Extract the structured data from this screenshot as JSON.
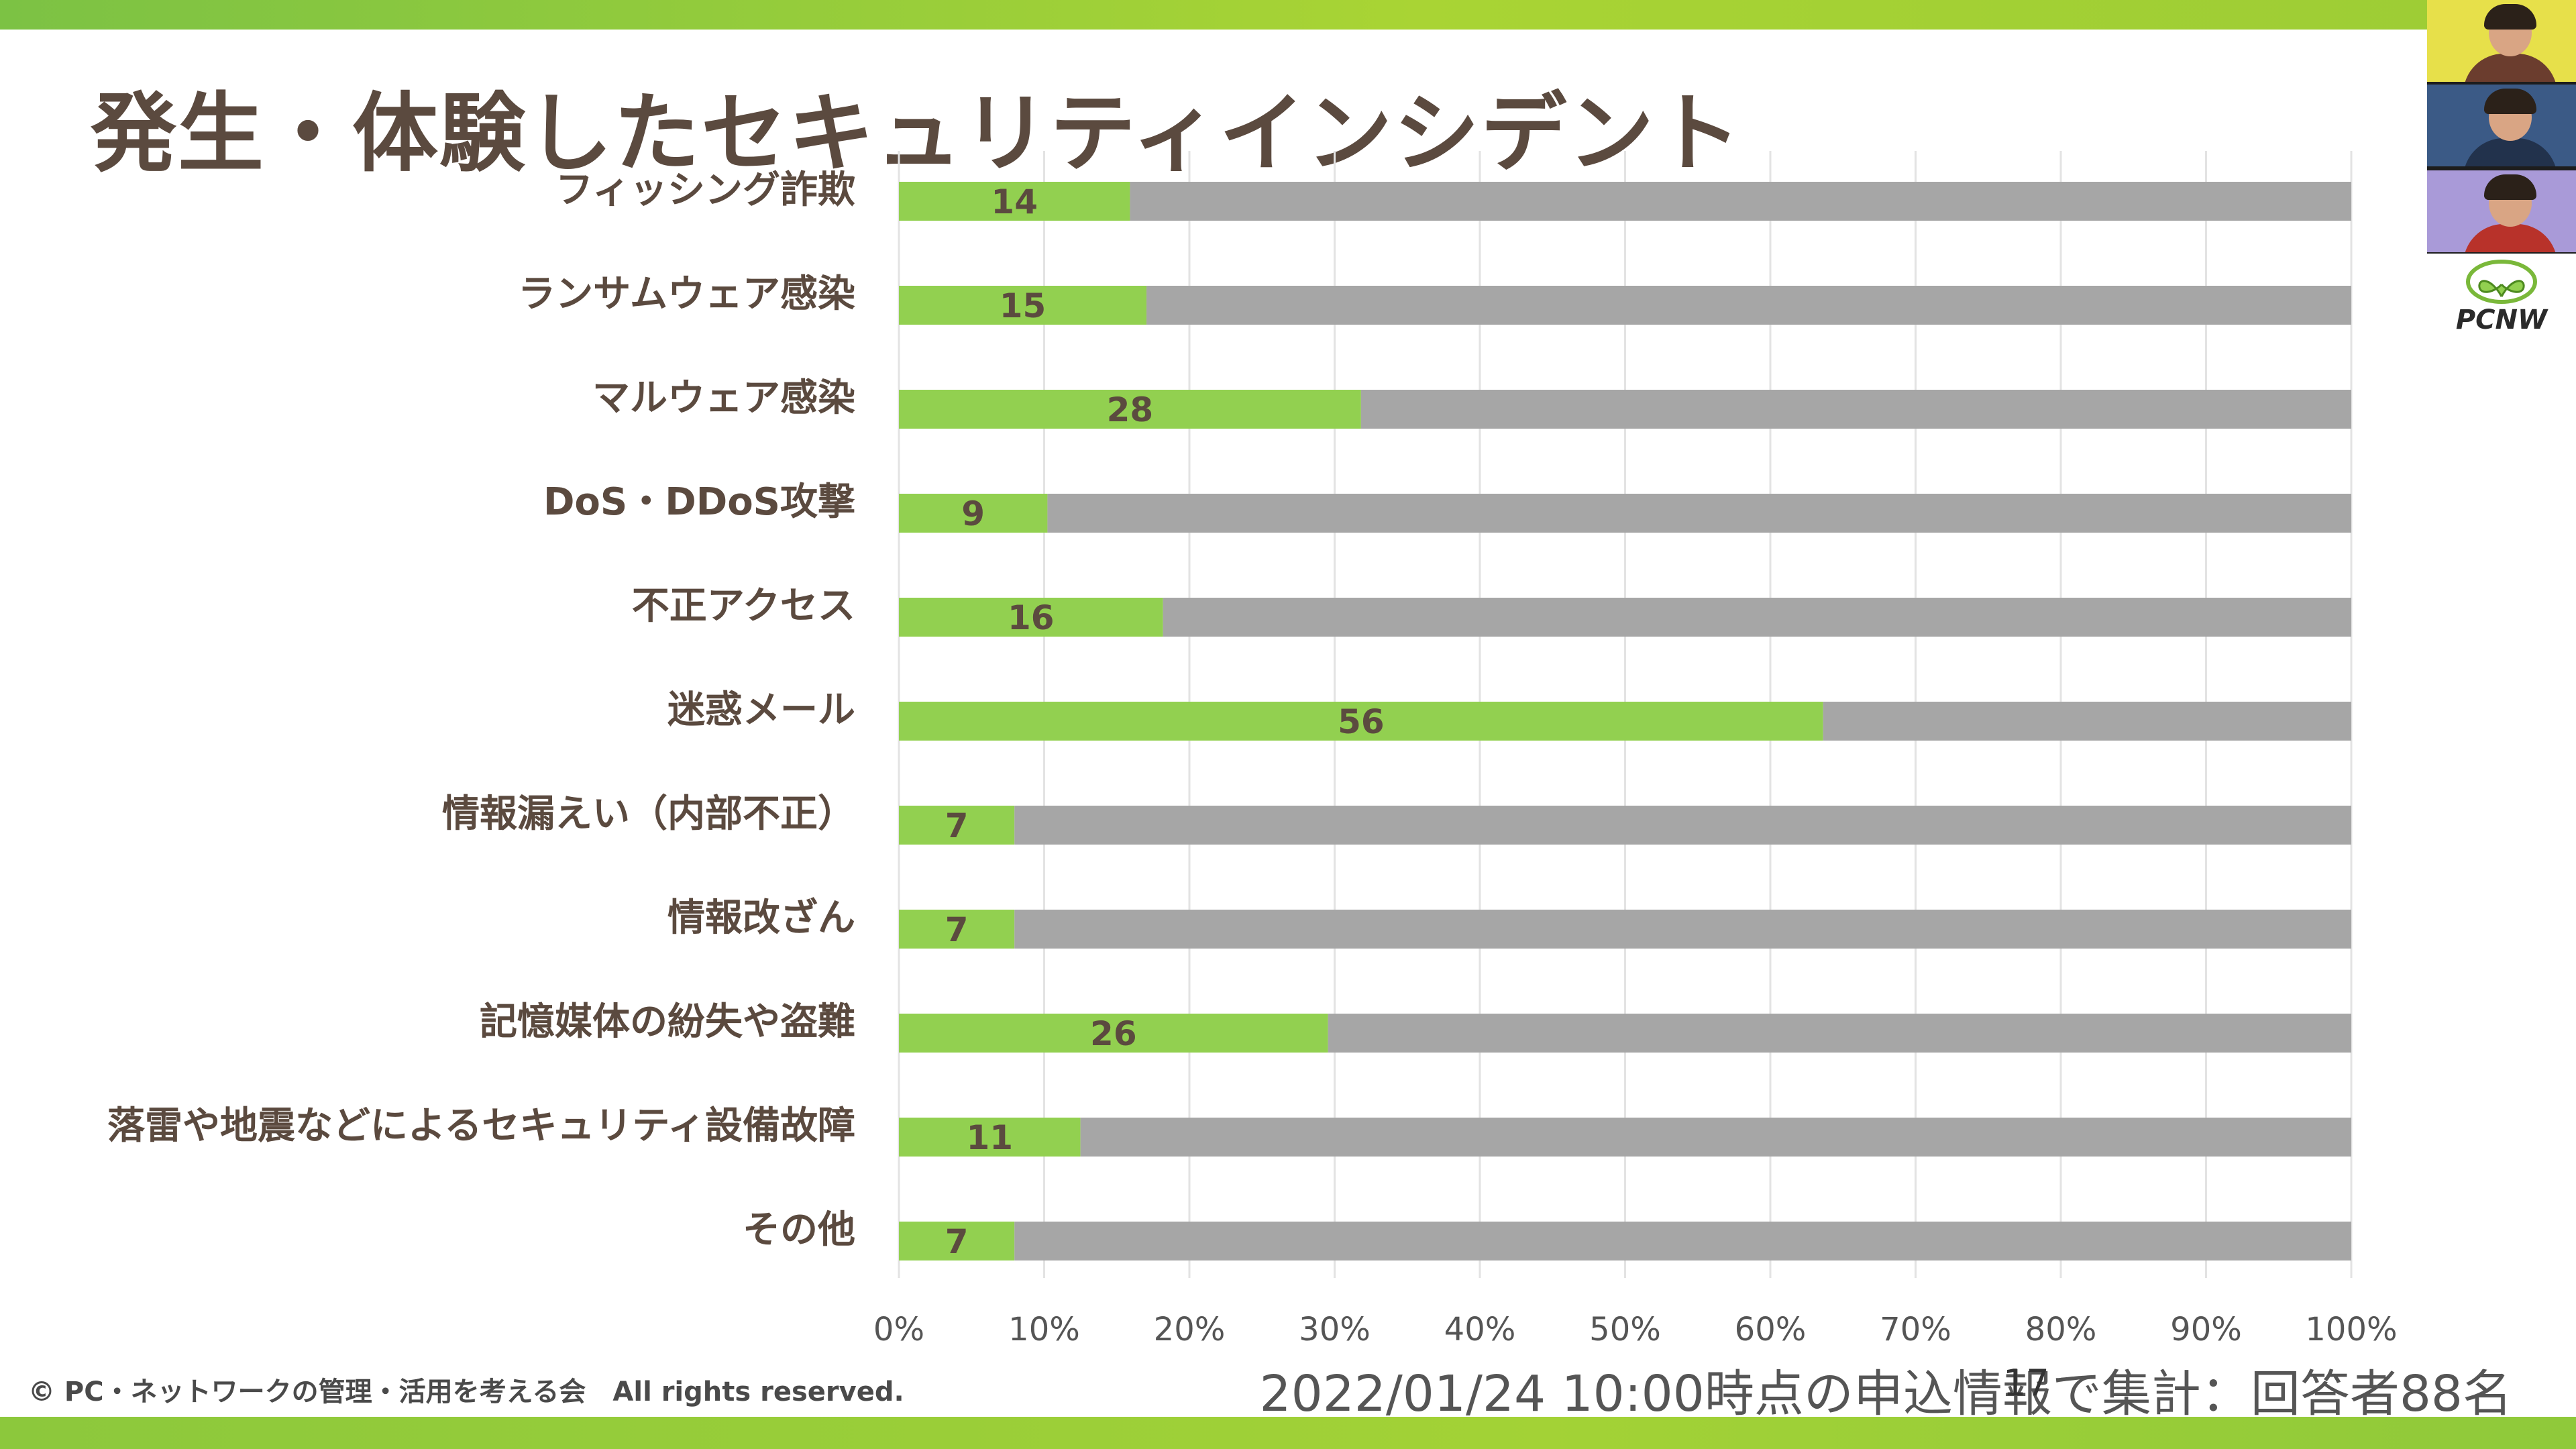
{
  "slide": {
    "title": "発生・体験したセキュリティインシデント",
    "copyright": "© PC・ネットワークの管理・活用を考える会　All rights reserved.",
    "footnote": "2022/01/24 10:00時点の申込情報で集計：回答者88名",
    "page_number": "17"
  },
  "video_panel": {
    "tiles": [
      {
        "icon": "participant-avatar-icon"
      },
      {
        "icon": "participant-avatar-icon"
      },
      {
        "icon": "participant-avatar-icon"
      }
    ],
    "logo_text": "PCNW"
  },
  "colors": {
    "accent_green": "#92d050",
    "remainder_gray": "#a6a6a6",
    "label_brown": "#5b4a3f"
  },
  "chart_data": {
    "type": "bar",
    "orientation": "horizontal",
    "stacked": "100%",
    "total_respondents": 88,
    "categories": [
      "フィッシング詐欺",
      "ランサムウェア感染",
      "マルウェア感染",
      "DoS・DDoS攻撃",
      "不正アクセス",
      "迷惑メール",
      "情報漏えい（内部不正）",
      "情報改ざん",
      "記憶媒体の紛失や盗難",
      "落雷や地震などによるセキュリティ設備故障",
      "その他"
    ],
    "series": [
      {
        "values": [
          14,
          15,
          28,
          9,
          16,
          56,
          7,
          7,
          26,
          11,
          7
        ],
        "color": "#92d050",
        "data_labels": true
      },
      {
        "values": [
          74,
          73,
          60,
          79,
          72,
          32,
          81,
          81,
          62,
          77,
          81
        ],
        "color": "#a6a6a6",
        "data_labels": false
      }
    ],
    "x_ticks": [
      "0%",
      "10%",
      "20%",
      "30%",
      "40%",
      "50%",
      "60%",
      "70%",
      "80%",
      "90%",
      "100%"
    ],
    "xlim": [
      0,
      100
    ],
    "grid": true,
    "legend": "none"
  }
}
